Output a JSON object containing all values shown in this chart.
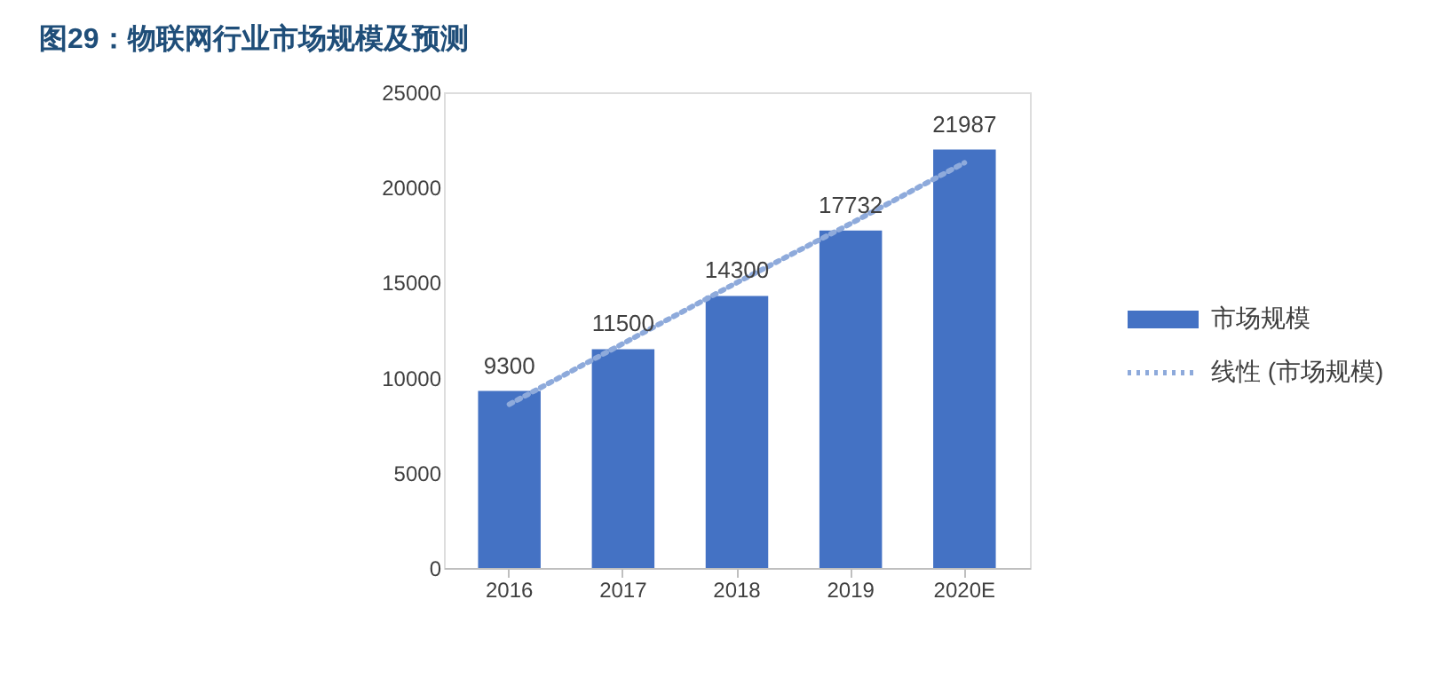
{
  "chart_data": {
    "type": "bar",
    "title": "图29：物联网行业市场规模及预测",
    "categories": [
      "2016",
      "2017",
      "2018",
      "2019",
      "2020E"
    ],
    "series": [
      {
        "name": "市场规模",
        "color": "#4472c4",
        "values": [
          9300,
          11500,
          14300,
          17732,
          21987
        ],
        "value_labels": [
          "9300",
          "11500",
          "14300",
          "17732",
          "21987"
        ]
      },
      {
        "name": "线性 (市场规模)",
        "type": "line",
        "color": "#8eaadb",
        "line_style": "dotted",
        "values": [
          8600,
          11800,
          15000,
          18100,
          21300
        ]
      }
    ],
    "ylim": [
      0,
      25000
    ],
    "yticks": [
      0,
      5000,
      10000,
      15000,
      20000,
      25000
    ],
    "grid": false,
    "legend": "right"
  }
}
